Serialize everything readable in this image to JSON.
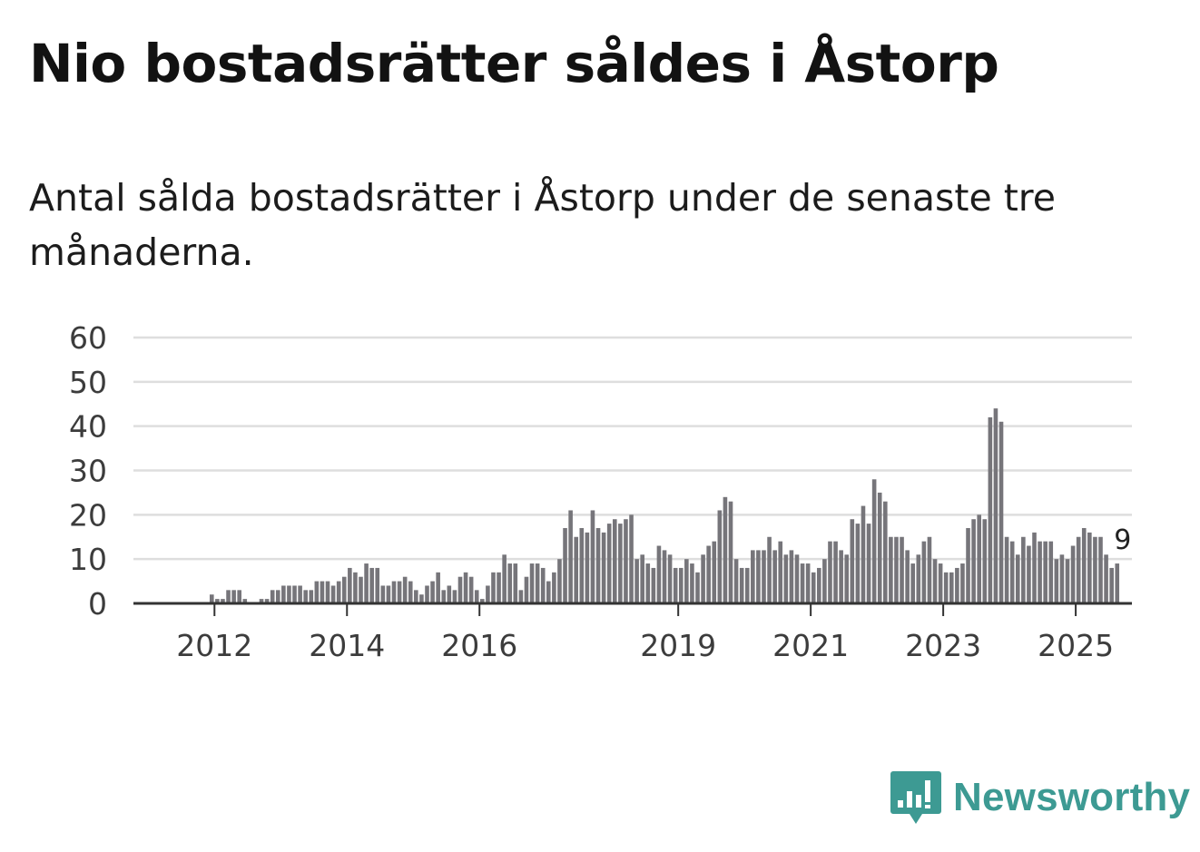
{
  "title": "Nio bostadsrätter såldes i Åstorp",
  "subtitle": "Antal sålda bostadsrätter i Åstorp under de senaste tre månaderna.",
  "brand": {
    "name": "Newsworthy",
    "color": "#3d9a93",
    "icon": "newsworthy-logo-icon"
  },
  "chart_data": {
    "type": "bar",
    "title": "",
    "xlabel": "",
    "ylabel": "",
    "ylim": [
      0,
      60
    ],
    "yticks": [
      0,
      10,
      20,
      30,
      40,
      50,
      60
    ],
    "xtick_labels": [
      {
        "label": "2012",
        "index": 6
      },
      {
        "label": "2014",
        "index": 30
      },
      {
        "label": "2016",
        "index": 54
      },
      {
        "label": "2019",
        "index": 90
      },
      {
        "label": "2021",
        "index": 114
      },
      {
        "label": "2023",
        "index": 138
      },
      {
        "label": "2025",
        "index": 162
      }
    ],
    "values": [
      0,
      0,
      0,
      0,
      0,
      0,
      2,
      1,
      1,
      3,
      3,
      3,
      1,
      0,
      0,
      1,
      1,
      3,
      3,
      4,
      4,
      4,
      4,
      3,
      3,
      5,
      5,
      5,
      4,
      5,
      6,
      8,
      7,
      6,
      9,
      8,
      8,
      4,
      4,
      5,
      5,
      6,
      5,
      3,
      2,
      4,
      5,
      7,
      3,
      4,
      3,
      6,
      7,
      6,
      3,
      1,
      4,
      7,
      7,
      11,
      9,
      9,
      3,
      6,
      9,
      9,
      8,
      5,
      7,
      10,
      17,
      21,
      15,
      17,
      16,
      21,
      17,
      16,
      18,
      19,
      18,
      19,
      20,
      10,
      11,
      9,
      8,
      13,
      12,
      11,
      8,
      8,
      10,
      9,
      7,
      11,
      13,
      14,
      21,
      24,
      23,
      10,
      8,
      8,
      12,
      12,
      12,
      15,
      12,
      14,
      11,
      12,
      11,
      9,
      9,
      7,
      8,
      10,
      14,
      14,
      12,
      11,
      19,
      18,
      22,
      18,
      28,
      25,
      23,
      15,
      15,
      15,
      12,
      9,
      11,
      14,
      15,
      10,
      9,
      7,
      7,
      8,
      9,
      17,
      19,
      20,
      19,
      42,
      44,
      41,
      15,
      14,
      11,
      15,
      13,
      16,
      14,
      14,
      14,
      10,
      11,
      10,
      13,
      15,
      17,
      16,
      15,
      15,
      11,
      8,
      9
    ],
    "highlight": {
      "index": 171,
      "value": 9,
      "label": "9",
      "color": "#1f9c94"
    },
    "bar_color": "#76757a",
    "grid": true
  }
}
